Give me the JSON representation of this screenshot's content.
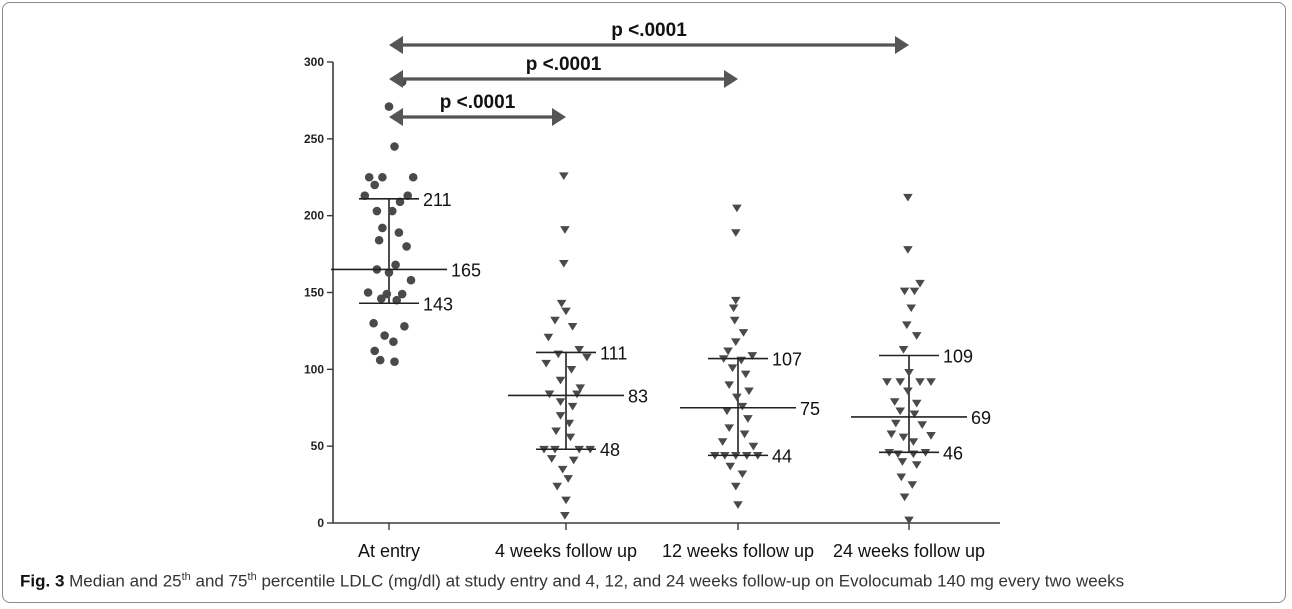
{
  "chart_data": {
    "type": "scatter",
    "categories": [
      "At entry",
      "4 weeks follow up",
      "12 weeks follow up",
      "24 weeks follow up"
    ],
    "ylim": [
      0,
      300
    ],
    "yticks": [
      0,
      50,
      100,
      150,
      200,
      250,
      300
    ],
    "grid": false,
    "groups": [
      {
        "marker": "circle",
        "median": 165,
        "p25": 143,
        "p75": 211,
        "median_label": "165",
        "p25_label": "143",
        "p75_label": "211",
        "points": [
          {
            "dx": 0.12,
            "y": 287
          },
          {
            "dx": 0.0,
            "y": 271
          },
          {
            "dx": 0.05,
            "y": 245
          },
          {
            "dx": -0.18,
            "y": 225
          },
          {
            "dx": -0.06,
            "y": 225
          },
          {
            "dx": 0.22,
            "y": 225
          },
          {
            "dx": -0.13,
            "y": 220
          },
          {
            "dx": 0.17,
            "y": 213
          },
          {
            "dx": -0.22,
            "y": 213
          },
          {
            "dx": 0.1,
            "y": 209
          },
          {
            "dx": 0.03,
            "y": 203
          },
          {
            "dx": -0.11,
            "y": 203
          },
          {
            "dx": -0.06,
            "y": 192
          },
          {
            "dx": 0.09,
            "y": 189
          },
          {
            "dx": -0.09,
            "y": 184
          },
          {
            "dx": 0.16,
            "y": 180
          },
          {
            "dx": 0.06,
            "y": 168
          },
          {
            "dx": -0.11,
            "y": 165
          },
          {
            "dx": 0.0,
            "y": 163
          },
          {
            "dx": 0.2,
            "y": 158
          },
          {
            "dx": -0.19,
            "y": 150
          },
          {
            "dx": -0.02,
            "y": 149
          },
          {
            "dx": 0.12,
            "y": 149
          },
          {
            "dx": -0.07,
            "y": 146
          },
          {
            "dx": 0.07,
            "y": 145
          },
          {
            "dx": -0.14,
            "y": 130
          },
          {
            "dx": 0.14,
            "y": 128
          },
          {
            "dx": -0.04,
            "y": 122
          },
          {
            "dx": 0.04,
            "y": 118
          },
          {
            "dx": -0.13,
            "y": 112
          },
          {
            "dx": -0.08,
            "y": 106
          },
          {
            "dx": 0.05,
            "y": 105
          }
        ]
      },
      {
        "marker": "triangle",
        "median": 83,
        "p25": 48,
        "p75": 111,
        "median_label": "83",
        "p25_label": "48",
        "p75_label": "111",
        "points": [
          {
            "dx": -0.02,
            "y": 226
          },
          {
            "dx": -0.01,
            "y": 191
          },
          {
            "dx": -0.02,
            "y": 169
          },
          {
            "dx": -0.04,
            "y": 143
          },
          {
            "dx": 0.0,
            "y": 138
          },
          {
            "dx": -0.1,
            "y": 132
          },
          {
            "dx": 0.06,
            "y": 128
          },
          {
            "dx": -0.16,
            "y": 121
          },
          {
            "dx": 0.12,
            "y": 113
          },
          {
            "dx": -0.07,
            "y": 110
          },
          {
            "dx": 0.19,
            "y": 108
          },
          {
            "dx": -0.18,
            "y": 104
          },
          {
            "dx": 0.05,
            "y": 100
          },
          {
            "dx": -0.05,
            "y": 93
          },
          {
            "dx": 0.13,
            "y": 88
          },
          {
            "dx": -0.15,
            "y": 84
          },
          {
            "dx": 0.1,
            "y": 84
          },
          {
            "dx": -0.05,
            "y": 79
          },
          {
            "dx": 0.06,
            "y": 76
          },
          {
            "dx": -0.05,
            "y": 70
          },
          {
            "dx": 0.03,
            "y": 65
          },
          {
            "dx": -0.09,
            "y": 60
          },
          {
            "dx": 0.04,
            "y": 56
          },
          {
            "dx": -0.2,
            "y": 48
          },
          {
            "dx": -0.1,
            "y": 48
          },
          {
            "dx": 0.12,
            "y": 48
          },
          {
            "dx": 0.22,
            "y": 48
          },
          {
            "dx": -0.13,
            "y": 42
          },
          {
            "dx": 0.07,
            "y": 41
          },
          {
            "dx": -0.03,
            "y": 35
          },
          {
            "dx": 0.02,
            "y": 29
          },
          {
            "dx": -0.08,
            "y": 24
          },
          {
            "dx": 0.0,
            "y": 15
          },
          {
            "dx": -0.01,
            "y": 5
          }
        ]
      },
      {
        "marker": "triangle",
        "median": 75,
        "p25": 44,
        "p75": 107,
        "median_label": "75",
        "p25_label": "44",
        "p75_label": "107",
        "points": [
          {
            "dx": -0.01,
            "y": 205
          },
          {
            "dx": -0.02,
            "y": 189
          },
          {
            "dx": -0.02,
            "y": 145
          },
          {
            "dx": -0.04,
            "y": 140
          },
          {
            "dx": -0.03,
            "y": 132
          },
          {
            "dx": 0.05,
            "y": 124
          },
          {
            "dx": -0.02,
            "y": 118
          },
          {
            "dx": -0.09,
            "y": 112
          },
          {
            "dx": 0.13,
            "y": 109
          },
          {
            "dx": -0.13,
            "y": 107
          },
          {
            "dx": 0.03,
            "y": 106
          },
          {
            "dx": -0.05,
            "y": 101
          },
          {
            "dx": 0.07,
            "y": 97
          },
          {
            "dx": -0.08,
            "y": 90
          },
          {
            "dx": 0.1,
            "y": 86
          },
          {
            "dx": -0.01,
            "y": 82
          },
          {
            "dx": 0.04,
            "y": 76
          },
          {
            "dx": -0.1,
            "y": 73
          },
          {
            "dx": 0.09,
            "y": 68
          },
          {
            "dx": -0.08,
            "y": 62
          },
          {
            "dx": 0.06,
            "y": 58
          },
          {
            "dx": -0.14,
            "y": 53
          },
          {
            "dx": 0.14,
            "y": 50
          },
          {
            "dx": -0.21,
            "y": 44
          },
          {
            "dx": -0.12,
            "y": 44
          },
          {
            "dx": -0.02,
            "y": 44
          },
          {
            "dx": 0.08,
            "y": 44
          },
          {
            "dx": 0.18,
            "y": 44
          },
          {
            "dx": -0.07,
            "y": 37
          },
          {
            "dx": 0.04,
            "y": 32
          },
          {
            "dx": -0.02,
            "y": 24
          },
          {
            "dx": 0.0,
            "y": 12
          }
        ]
      },
      {
        "marker": "triangle",
        "median": 69,
        "p25": 46,
        "p75": 109,
        "median_label": "69",
        "p25_label": "46",
        "p75_label": "109",
        "points": [
          {
            "dx": -0.01,
            "y": 212
          },
          {
            "dx": -0.01,
            "y": 178
          },
          {
            "dx": 0.1,
            "y": 156
          },
          {
            "dx": -0.04,
            "y": 151
          },
          {
            "dx": 0.05,
            "y": 151
          },
          {
            "dx": 0.02,
            "y": 140
          },
          {
            "dx": -0.02,
            "y": 129
          },
          {
            "dx": 0.07,
            "y": 122
          },
          {
            "dx": -0.05,
            "y": 113
          },
          {
            "dx": 0.0,
            "y": 98
          },
          {
            "dx": -0.2,
            "y": 92
          },
          {
            "dx": -0.08,
            "y": 92
          },
          {
            "dx": 0.1,
            "y": 92
          },
          {
            "dx": 0.2,
            "y": 92
          },
          {
            "dx": -0.01,
            "y": 86
          },
          {
            "dx": -0.13,
            "y": 79
          },
          {
            "dx": 0.07,
            "y": 78
          },
          {
            "dx": -0.08,
            "y": 73
          },
          {
            "dx": 0.05,
            "y": 71
          },
          {
            "dx": -0.12,
            "y": 65
          },
          {
            "dx": 0.12,
            "y": 64
          },
          {
            "dx": -0.16,
            "y": 58
          },
          {
            "dx": 0.2,
            "y": 57
          },
          {
            "dx": -0.05,
            "y": 56
          },
          {
            "dx": 0.04,
            "y": 53
          },
          {
            "dx": -0.18,
            "y": 46
          },
          {
            "dx": -0.1,
            "y": 45
          },
          {
            "dx": 0.04,
            "y": 45
          },
          {
            "dx": 0.15,
            "y": 46
          },
          {
            "dx": -0.06,
            "y": 40
          },
          {
            "dx": 0.07,
            "y": 38
          },
          {
            "dx": -0.07,
            "y": 30
          },
          {
            "dx": 0.03,
            "y": 25
          },
          {
            "dx": -0.04,
            "y": 17
          },
          {
            "dx": 0.0,
            "y": 2
          }
        ]
      }
    ],
    "comparisons": [
      {
        "from": 0,
        "to": 1,
        "label": "p <.0001"
      },
      {
        "from": 0,
        "to": 2,
        "label": "p <.0001"
      },
      {
        "from": 0,
        "to": 3,
        "label": "p <.0001"
      }
    ]
  },
  "caption": {
    "fig_label": "Fig. 3",
    "parts": [
      " Median and 25",
      "th",
      " and 75",
      "th",
      " percentile LDLC (mg/dl) at study entry and 4, 12, and 24 weeks follow-up on Evolocumab 140 mg every two weeks"
    ]
  }
}
